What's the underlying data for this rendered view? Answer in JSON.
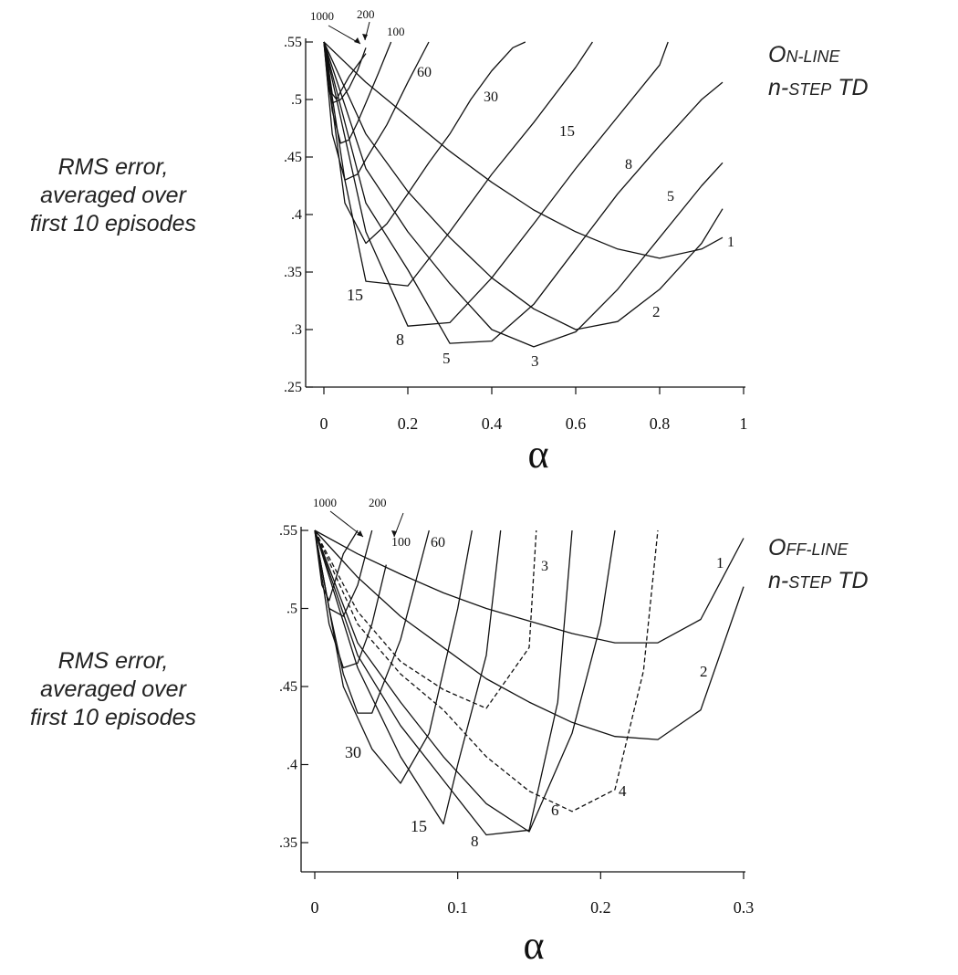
{
  "chart_data": [
    {
      "type": "line",
      "title_lines": [
        [
          "O",
          "N-LINE"
        ],
        [
          "n-",
          "STEP",
          " TD"
        ]
      ],
      "ylabel_lines": [
        "RMS error,",
        "averaged over",
        "first 10 episodes"
      ],
      "xlabel": "α",
      "xlim": [
        0,
        1
      ],
      "ylim": [
        0.25,
        0.55
      ],
      "xticks": [
        0,
        0.2,
        0.4,
        0.6,
        0.8,
        1
      ],
      "xtick_labels": [
        "0",
        "0.2",
        "0.4",
        "0.6",
        "0.8",
        "1"
      ],
      "yticks": [
        0.25,
        0.3,
        0.35,
        0.4,
        0.45,
        0.5,
        0.55
      ],
      "ytick_labels": [
        ".25",
        ".3",
        ".35",
        ".4",
        ".45",
        ".5",
        ".55"
      ],
      "series": [
        {
          "name": "1",
          "x": [
            0,
            0.1,
            0.2,
            0.3,
            0.4,
            0.5,
            0.6,
            0.7,
            0.8,
            0.9,
            0.95
          ],
          "y": [
            0.55,
            0.515,
            0.485,
            0.455,
            0.428,
            0.404,
            0.385,
            0.37,
            0.362,
            0.37,
            0.38
          ]
        },
        {
          "name": "2",
          "x": [
            0,
            0.1,
            0.2,
            0.3,
            0.4,
            0.5,
            0.6,
            0.7,
            0.8,
            0.9,
            0.95
          ],
          "y": [
            0.55,
            0.47,
            0.42,
            0.38,
            0.345,
            0.318,
            0.3,
            0.307,
            0.335,
            0.375,
            0.405
          ]
        },
        {
          "name": "3",
          "x": [
            0,
            0.1,
            0.2,
            0.3,
            0.4,
            0.5,
            0.6,
            0.7,
            0.8,
            0.9,
            0.95
          ],
          "y": [
            0.55,
            0.44,
            0.385,
            0.34,
            0.3,
            0.285,
            0.298,
            0.335,
            0.38,
            0.425,
            0.445
          ]
        },
        {
          "name": "5",
          "x": [
            0,
            0.1,
            0.2,
            0.3,
            0.4,
            0.5,
            0.6,
            0.7,
            0.8,
            0.9,
            0.95
          ],
          "y": [
            0.55,
            0.41,
            0.352,
            0.288,
            0.29,
            0.322,
            0.37,
            0.418,
            0.46,
            0.5,
            0.515
          ]
        },
        {
          "name": "8",
          "x": [
            0,
            0.1,
            0.2,
            0.3,
            0.4,
            0.5,
            0.6,
            0.7,
            0.8,
            0.82
          ],
          "y": [
            0.55,
            0.385,
            0.303,
            0.306,
            0.345,
            0.392,
            0.44,
            0.485,
            0.53,
            0.55
          ]
        },
        {
          "name": "15",
          "x": [
            0,
            0.05,
            0.1,
            0.2,
            0.3,
            0.4,
            0.5,
            0.6,
            0.64
          ],
          "y": [
            0.55,
            0.43,
            0.342,
            0.338,
            0.385,
            0.435,
            0.48,
            0.528,
            0.55
          ]
        },
        {
          "name": "30",
          "x": [
            0,
            0.05,
            0.1,
            0.15,
            0.2,
            0.25,
            0.3,
            0.35,
            0.4,
            0.45,
            0.48
          ],
          "y": [
            0.55,
            0.41,
            0.375,
            0.392,
            0.418,
            0.445,
            0.47,
            0.5,
            0.525,
            0.545,
            0.55
          ]
        },
        {
          "name": "60",
          "x": [
            0,
            0.02,
            0.05,
            0.08,
            0.1,
            0.15,
            0.2,
            0.25
          ],
          "y": [
            0.55,
            0.47,
            0.43,
            0.435,
            0.448,
            0.478,
            0.515,
            0.55
          ]
        },
        {
          "name": "100",
          "x": [
            0,
            0.02,
            0.04,
            0.06,
            0.08,
            0.1,
            0.13,
            0.16
          ],
          "y": [
            0.55,
            0.49,
            0.462,
            0.465,
            0.48,
            0.497,
            0.523,
            0.55
          ]
        },
        {
          "name": "200",
          "x": [
            0,
            0.01,
            0.02,
            0.04,
            0.06,
            0.08,
            0.1
          ],
          "y": [
            0.55,
            0.512,
            0.497,
            0.5,
            0.51,
            0.525,
            0.545
          ]
        },
        {
          "name": "1000",
          "x": [
            0,
            0.01,
            0.02,
            0.03,
            0.04,
            0.06,
            0.1
          ],
          "y": [
            0.55,
            0.53,
            0.505,
            0.5,
            0.507,
            0.52,
            0.54
          ]
        }
      ],
      "annotations": [
        "1000",
        "200",
        "100",
        "60",
        "30",
        "15",
        "8",
        "5",
        "1",
        "15",
        "8",
        "5",
        "3",
        "2"
      ]
    },
    {
      "type": "line",
      "title_lines": [
        [
          "O",
          "FF-LINE"
        ],
        [
          "n-",
          "STEP",
          " TD"
        ]
      ],
      "ylabel_lines": [
        "RMS error,",
        "averaged over",
        "first 10 episodes"
      ],
      "xlabel": "α",
      "xlim": [
        0,
        0.3
      ],
      "ylim": [
        0.33,
        0.55
      ],
      "xticks": [
        0,
        0.1,
        0.2,
        0.3
      ],
      "xtick_labels": [
        "0",
        "0.1",
        "0.2",
        "0.3"
      ],
      "yticks": [
        0.35,
        0.4,
        0.45,
        0.5,
        0.55
      ],
      "ytick_labels": [
        ".35",
        ".4",
        ".45",
        ".5",
        ".55"
      ],
      "series": [
        {
          "name": "1",
          "x": [
            0,
            0.03,
            0.06,
            0.09,
            0.12,
            0.15,
            0.18,
            0.21,
            0.24,
            0.27,
            0.3
          ],
          "y": [
            0.55,
            0.535,
            0.522,
            0.51,
            0.5,
            0.492,
            0.484,
            0.478,
            0.478,
            0.493,
            0.545
          ]
        },
        {
          "name": "2",
          "x": [
            0,
            0.03,
            0.06,
            0.09,
            0.12,
            0.15,
            0.18,
            0.21,
            0.24,
            0.27,
            0.3
          ],
          "y": [
            0.55,
            0.52,
            0.495,
            0.475,
            0.455,
            0.44,
            0.427,
            0.418,
            0.416,
            0.435,
            0.514
          ]
        },
        {
          "name": "3",
          "dashed": true,
          "x": [
            0,
            0.03,
            0.06,
            0.09,
            0.12,
            0.15,
            0.153,
            0.155
          ],
          "y": [
            0.55,
            0.498,
            0.466,
            0.448,
            0.436,
            0.475,
            0.52,
            0.55
          ]
        },
        {
          "name": "4",
          "dashed": true,
          "x": [
            0,
            0.03,
            0.06,
            0.09,
            0.12,
            0.15,
            0.18,
            0.21,
            0.23,
            0.24
          ],
          "y": [
            0.55,
            0.49,
            0.458,
            0.435,
            0.405,
            0.383,
            0.37,
            0.384,
            0.46,
            0.55
          ]
        },
        {
          "name": "6",
          "x": [
            0,
            0.03,
            0.06,
            0.09,
            0.12,
            0.15,
            0.18,
            0.2,
            0.21
          ],
          "y": [
            0.55,
            0.478,
            0.44,
            0.405,
            0.375,
            0.357,
            0.42,
            0.49,
            0.55
          ]
        },
        {
          "name": "8",
          "x": [
            0,
            0.03,
            0.06,
            0.09,
            0.12,
            0.15,
            0.17,
            0.18
          ],
          "y": [
            0.55,
            0.47,
            0.425,
            0.39,
            0.355,
            0.358,
            0.44,
            0.55
          ]
        },
        {
          "name": "15",
          "x": [
            0,
            0.03,
            0.06,
            0.09,
            0.1,
            0.12,
            0.13
          ],
          "y": [
            0.55,
            0.462,
            0.405,
            0.362,
            0.4,
            0.47,
            0.55
          ]
        },
        {
          "name": "30",
          "x": [
            0,
            0.02,
            0.04,
            0.06,
            0.08,
            0.1,
            0.11
          ],
          "y": [
            0.55,
            0.45,
            0.41,
            0.388,
            0.42,
            0.5,
            0.55
          ]
        },
        {
          "name": "60",
          "x": [
            0,
            0.01,
            0.02,
            0.03,
            0.04,
            0.06,
            0.08
          ],
          "y": [
            0.55,
            0.5,
            0.458,
            0.433,
            0.433,
            0.48,
            0.55
          ]
        },
        {
          "name": "100",
          "x": [
            0,
            0.01,
            0.02,
            0.03,
            0.04,
            0.05
          ],
          "y": [
            0.55,
            0.49,
            0.462,
            0.465,
            0.49,
            0.528
          ]
        },
        {
          "name": "200",
          "x": [
            0,
            0.01,
            0.02,
            0.03,
            0.04
          ],
          "y": [
            0.55,
            0.5,
            0.495,
            0.515,
            0.55
          ]
        },
        {
          "name": "1000",
          "x": [
            0,
            0.005,
            0.01,
            0.015,
            0.02,
            0.03
          ],
          "y": [
            0.55,
            0.515,
            0.505,
            0.52,
            0.535,
            0.55
          ]
        }
      ],
      "annotations": [
        "1000",
        "200",
        "100",
        "60",
        "3",
        "1",
        "2",
        "30",
        "15",
        "8",
        "6",
        "4"
      ]
    }
  ]
}
